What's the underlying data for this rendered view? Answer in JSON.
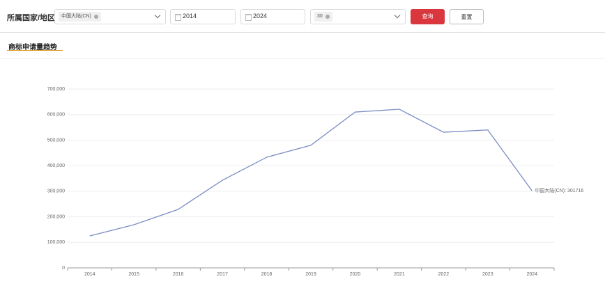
{
  "filters": {
    "region_label": "所属国家/地区",
    "region_tag": "中国大陆(CN)",
    "start_year": "2014",
    "end_year": "2024",
    "count_tag": "30",
    "query_button": "查询",
    "reset_button": "重置"
  },
  "section_title": "商标申请量趋势",
  "chart_data": {
    "type": "line",
    "categories": [
      "2014",
      "2015",
      "2016",
      "2017",
      "2018",
      "2019",
      "2020",
      "2021",
      "2022",
      "2023",
      "2024"
    ],
    "series": [
      {
        "name": "中国大陆(CN)",
        "color": "#7a8cc2",
        "values": [
          125000,
          169000,
          229000,
          343000,
          433000,
          480000,
          610000,
          621000,
          531000,
          540000,
          301716
        ],
        "value_labels": [
          null,
          null,
          null,
          null,
          null,
          null,
          null,
          null,
          null,
          null,
          "中国大陆(CN): 301716"
        ]
      }
    ],
    "ylim": [
      0,
      700000
    ],
    "yticks": [
      0,
      {
        "value": 100000,
        "label": "100,000"
      },
      {
        "value": 200000,
        "label": "200,000"
      },
      {
        "value": 300000,
        "label": "300,000"
      },
      {
        "value": 400000,
        "label": "400,000"
      },
      {
        "value": 500000,
        "label": "500,000"
      },
      {
        "value": 600000,
        "label": "600,000"
      },
      {
        "value": 700000,
        "label": "700,000"
      }
    ],
    "grid": true
  }
}
